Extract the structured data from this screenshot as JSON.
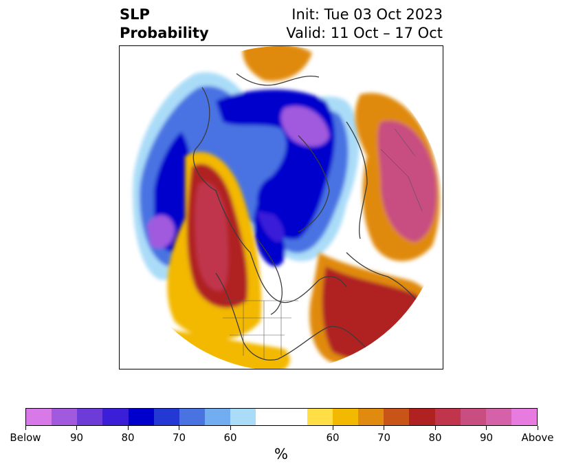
{
  "title": {
    "left_line1": "SLP",
    "left_line2": "Probability",
    "right_line1": "Init: Tue 03 Oct 2023",
    "right_line2": "Valid: 11 Oct – 17 Oct"
  },
  "colorbar": {
    "colors": [
      "#d77ae8",
      "#a15ade",
      "#6d3bd8",
      "#3a1ed8",
      "#0000cc",
      "#2438d4",
      "#4a73e2",
      "#71adf0",
      "#aadcf8",
      "#ffffff",
      "#ffffff",
      "#ffde46",
      "#f3b800",
      "#e08a10",
      "#c85418",
      "#b02222",
      "#c0344c",
      "#c84d80",
      "#d562a8",
      "#e77be0"
    ],
    "labels": [
      "Below",
      "90",
      "80",
      "70",
      "60",
      "60",
      "70",
      "80",
      "90",
      "Above"
    ],
    "units": "%"
  },
  "map": {
    "projection": "north-polar-stereographic",
    "variable": "sea level pressure tercile probability",
    "features": [
      "coastlines",
      "country-borders",
      "us-state-borders"
    ]
  }
}
